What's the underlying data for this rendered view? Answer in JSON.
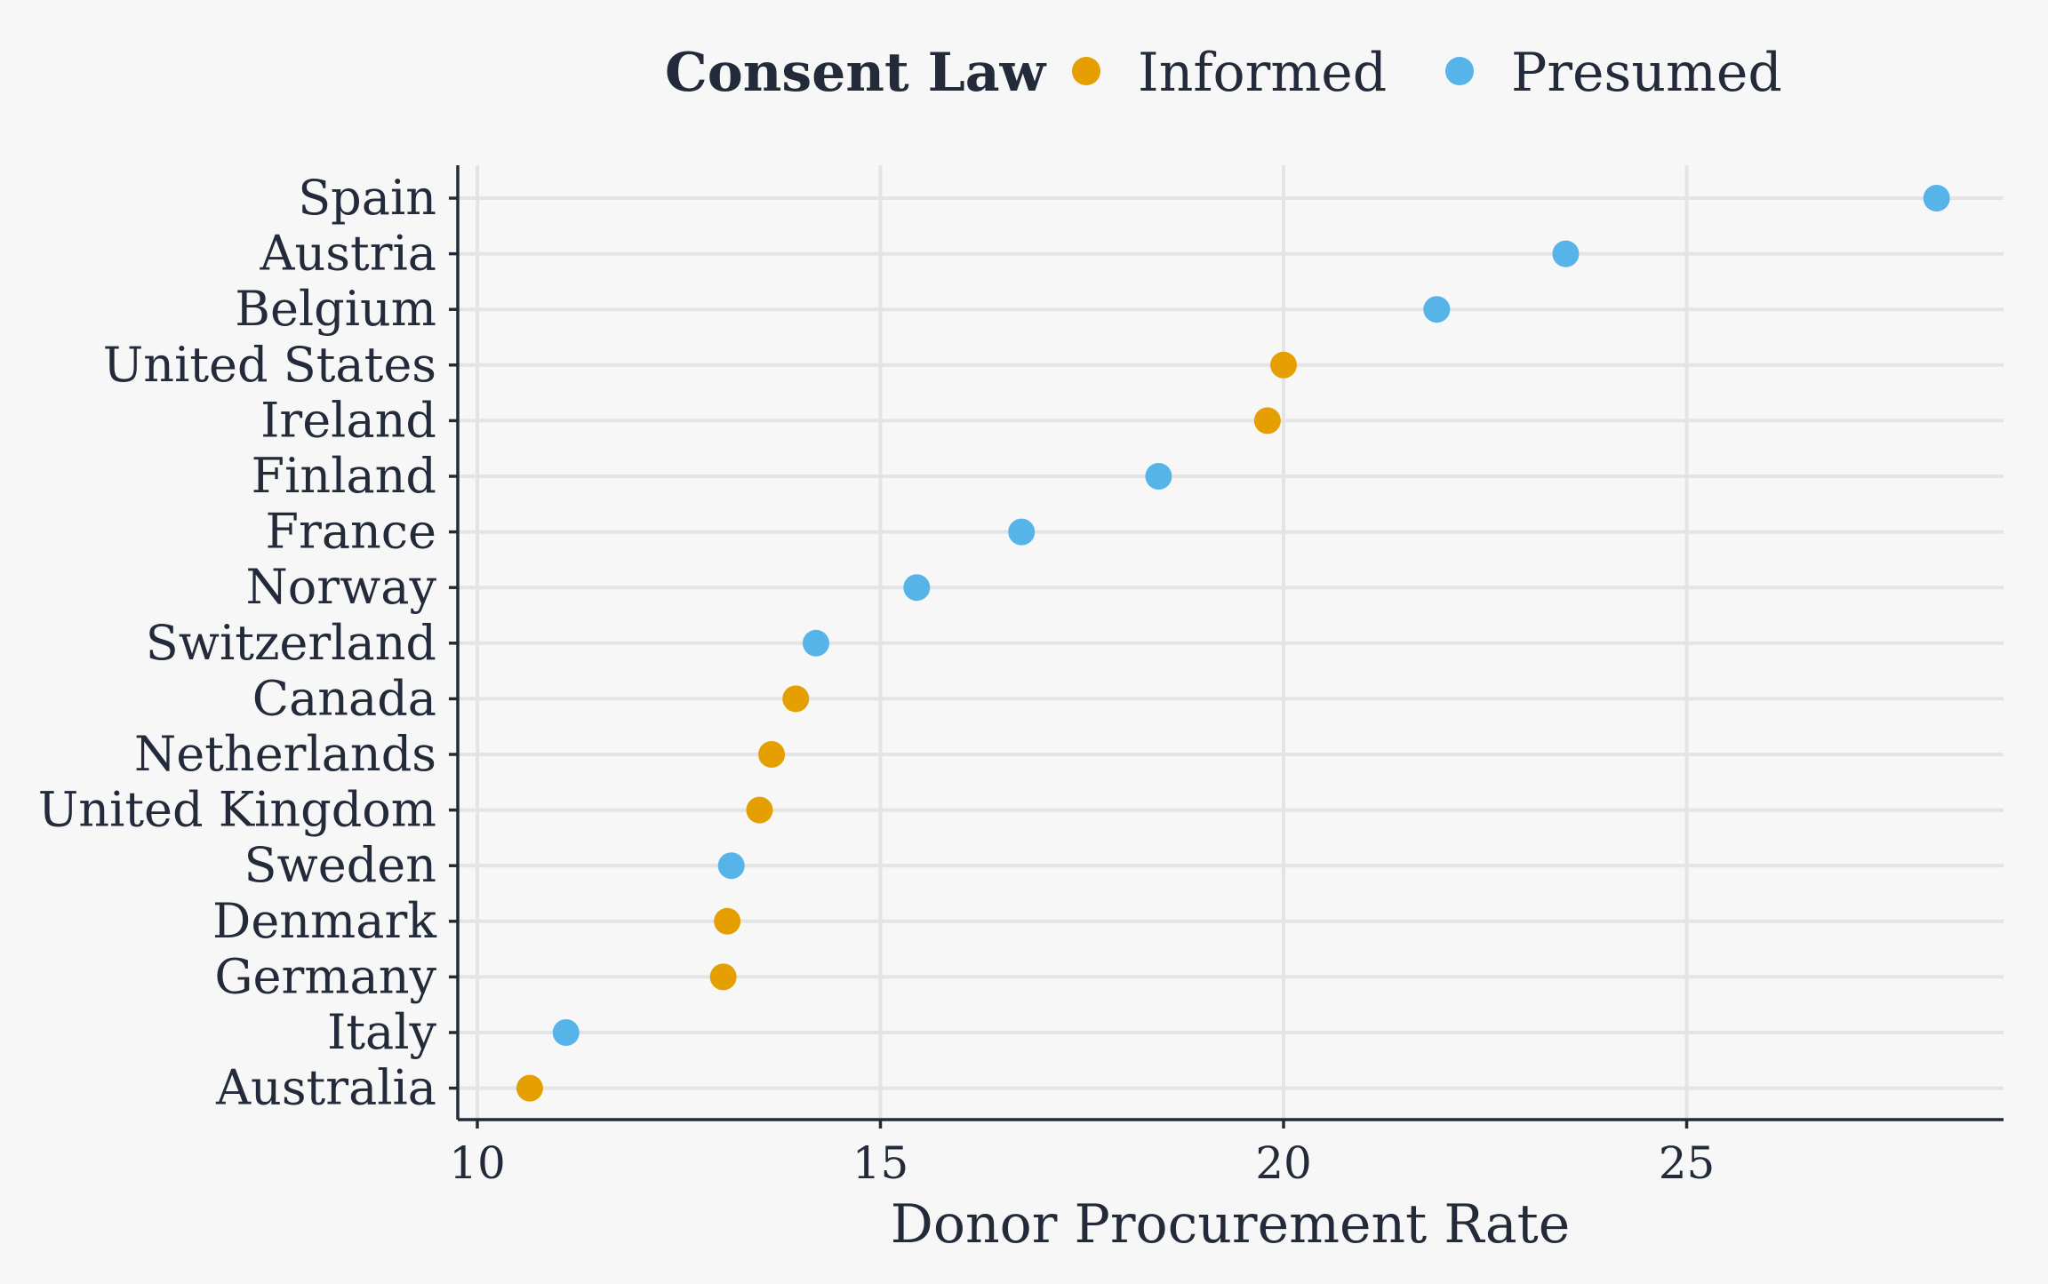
{
  "chart_data": {
    "type": "scatter",
    "xlabel": "Donor Procurement Rate",
    "ylabel": "",
    "xlim": [
      9.8,
      29
    ],
    "xticks": [
      10,
      15,
      20,
      25
    ],
    "grid": true,
    "legend": {
      "title": "Consent Law",
      "placement": "top",
      "entries": [
        {
          "name": "Informed",
          "color": "#e69f00"
        },
        {
          "name": "Presumed",
          "color": "#56b4e9"
        }
      ]
    },
    "categories": [
      "Spain",
      "Austria",
      "Belgium",
      "United States",
      "Ireland",
      "Finland",
      "France",
      "Norway",
      "Switzerland",
      "Canada",
      "Netherlands",
      "United Kingdom",
      "Sweden",
      "Denmark",
      "Germany",
      "Italy",
      "Australia"
    ],
    "points": [
      {
        "country": "Spain",
        "value": 28.1,
        "law": "Presumed"
      },
      {
        "country": "Austria",
        "value": 23.5,
        "law": "Presumed"
      },
      {
        "country": "Belgium",
        "value": 21.9,
        "law": "Presumed"
      },
      {
        "country": "United States",
        "value": 20.0,
        "law": "Informed"
      },
      {
        "country": "Ireland",
        "value": 19.8,
        "law": "Informed"
      },
      {
        "country": "Finland",
        "value": 18.45,
        "law": "Presumed"
      },
      {
        "country": "France",
        "value": 16.75,
        "law": "Presumed"
      },
      {
        "country": "Norway",
        "value": 15.45,
        "law": "Presumed"
      },
      {
        "country": "Switzerland",
        "value": 14.2,
        "law": "Presumed"
      },
      {
        "country": "Canada",
        "value": 13.95,
        "law": "Informed"
      },
      {
        "country": "Netherlands",
        "value": 13.65,
        "law": "Informed"
      },
      {
        "country": "United Kingdom",
        "value": 13.5,
        "law": "Informed"
      },
      {
        "country": "Sweden",
        "value": 13.15,
        "law": "Presumed"
      },
      {
        "country": "Denmark",
        "value": 13.1,
        "law": "Informed"
      },
      {
        "country": "Germany",
        "value": 13.05,
        "law": "Informed"
      },
      {
        "country": "Italy",
        "value": 11.1,
        "law": "Presumed"
      },
      {
        "country": "Australia",
        "value": 10.65,
        "law": "Informed"
      }
    ]
  }
}
